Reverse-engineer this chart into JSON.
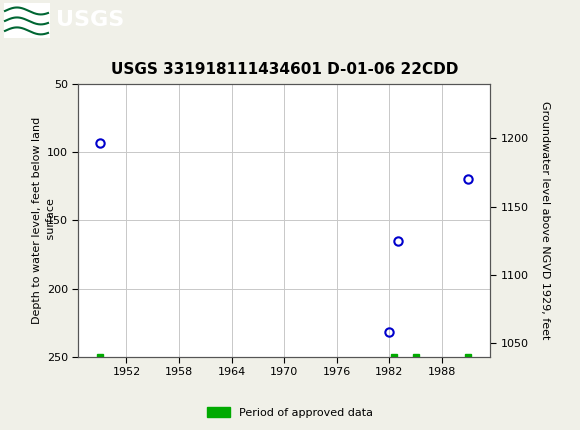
{
  "title": "USGS 331918111434601 D-01-06 22CDD",
  "header_bg_color": "#006633",
  "plot_bg_color": "#ffffff",
  "grid_color": "#c8c8c8",
  "left_ylabel": "Depth to water level, feet below land\n surface",
  "right_ylabel": "Groundwater level above NGVD 1929, feet",
  "xlim": [
    1946.5,
    1993.5
  ],
  "ylim_left": [
    50,
    250
  ],
  "ylim_right": [
    1040,
    1240
  ],
  "xticks": [
    1952,
    1958,
    1964,
    1970,
    1976,
    1982,
    1988
  ],
  "yticks_left": [
    50,
    100,
    150,
    200,
    250
  ],
  "yticks_right": [
    1050,
    1100,
    1150,
    1200
  ],
  "data_points": [
    {
      "year": 1949,
      "depth": 93
    },
    {
      "year": 1983,
      "depth": 165
    },
    {
      "year": 1982,
      "depth": 232
    },
    {
      "year": 1991,
      "depth": 120
    }
  ],
  "approved_markers": [
    {
      "year": 1949,
      "y": 250
    },
    {
      "year": 1982.5,
      "y": 250
    },
    {
      "year": 1985,
      "y": 250
    },
    {
      "year": 1991,
      "y": 250
    }
  ],
  "point_color": "#0000cc",
  "point_markersize": 6,
  "approved_color": "#00aa00",
  "legend_label": "Period of approved data",
  "title_fontsize": 11,
  "axis_fontsize": 8,
  "tick_fontsize": 8
}
